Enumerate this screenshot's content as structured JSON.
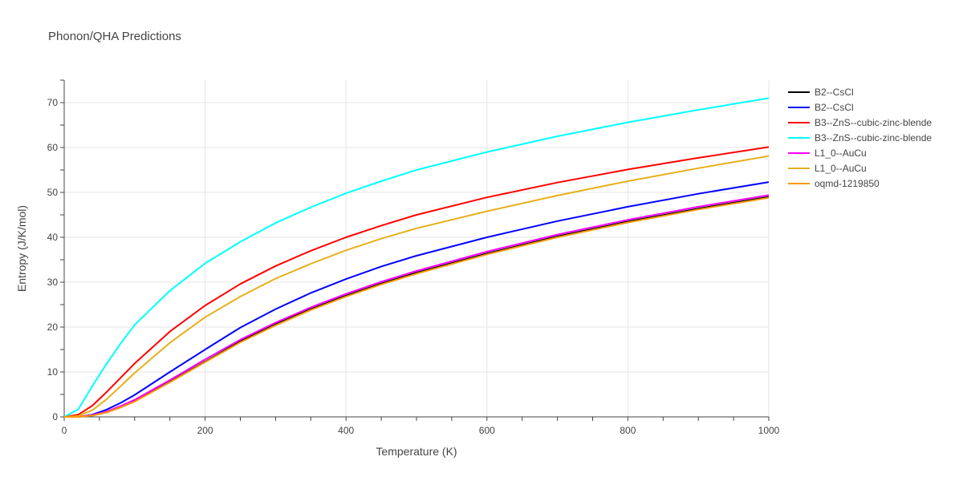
{
  "chart_data": {
    "type": "line",
    "title": "Phonon/QHA Predictions",
    "xlabel": "Temperature (K)",
    "ylabel": "Entropy (J/K/mol)",
    "xlim": [
      0,
      1000
    ],
    "ylim": [
      0,
      75
    ],
    "xticks": [
      0,
      200,
      400,
      600,
      800,
      1000
    ],
    "yticks": [
      0,
      10,
      20,
      30,
      40,
      50,
      60,
      70
    ],
    "grid": true,
    "legend_position": "top-right, outside plot",
    "x": [
      0,
      20,
      40,
      60,
      80,
      100,
      150,
      200,
      250,
      300,
      350,
      400,
      450,
      500,
      600,
      700,
      800,
      900,
      1000
    ],
    "series": [
      {
        "name": "B2--CsCl",
        "color": "#000000",
        "values": [
          0,
          0,
          0.3,
          1.0,
          2.1,
          3.5,
          7.8,
          12.3,
          16.8,
          20.6,
          24.0,
          27.0,
          29.7,
          32.1,
          36.4,
          40.2,
          43.5,
          46.4,
          49.0
        ]
      },
      {
        "name": "B2--CsCl",
        "color": "#0000ff",
        "values": [
          0,
          0,
          0.5,
          1.6,
          3.1,
          4.9,
          10.0,
          15.0,
          19.9,
          24.0,
          27.6,
          30.7,
          33.5,
          35.9,
          40.0,
          43.6,
          46.8,
          49.7,
          52.3
        ]
      },
      {
        "name": "B3--ZnS--cubic-zinc-blende",
        "color": "#ff0000",
        "values": [
          0,
          0.5,
          2.5,
          5.5,
          8.7,
          11.9,
          19.0,
          24.8,
          29.6,
          33.6,
          37.0,
          40.0,
          42.6,
          45.0,
          48.9,
          52.2,
          55.1,
          57.7,
          60.1
        ]
      },
      {
        "name": "B3--ZnS--cubic-zinc-blende",
        "color": "#00ffff",
        "values": [
          0,
          1.7,
          6.9,
          11.8,
          16.3,
          20.5,
          28.1,
          34.2,
          39.0,
          43.2,
          46.7,
          49.8,
          52.5,
          55.0,
          59.0,
          62.5,
          65.6,
          68.4,
          71.0
        ]
      },
      {
        "name": "L1_0--AuCu",
        "color": "#ff00ff",
        "values": [
          0,
          0,
          0.4,
          1.2,
          2.4,
          3.8,
          8.2,
          12.8,
          17.2,
          21.0,
          24.4,
          27.4,
          30.1,
          32.5,
          36.8,
          40.6,
          43.9,
          46.8,
          49.4
        ]
      },
      {
        "name": "L1_0--AuCu",
        "color": "#e6b01a",
        "values": [
          0,
          0.2,
          1.5,
          3.9,
          6.8,
          9.8,
          16.5,
          22.2,
          26.8,
          30.8,
          34.1,
          37.1,
          39.7,
          42.0,
          45.8,
          49.3,
          52.5,
          55.4,
          58.1
        ]
      },
      {
        "name": "oqmd-1219850",
        "color": "#ff9900",
        "values": [
          0,
          0,
          0.3,
          1.0,
          2.1,
          3.4,
          7.7,
          12.2,
          16.6,
          20.4,
          23.8,
          26.8,
          29.5,
          31.9,
          36.2,
          40.0,
          43.3,
          46.2,
          48.8
        ]
      }
    ]
  }
}
